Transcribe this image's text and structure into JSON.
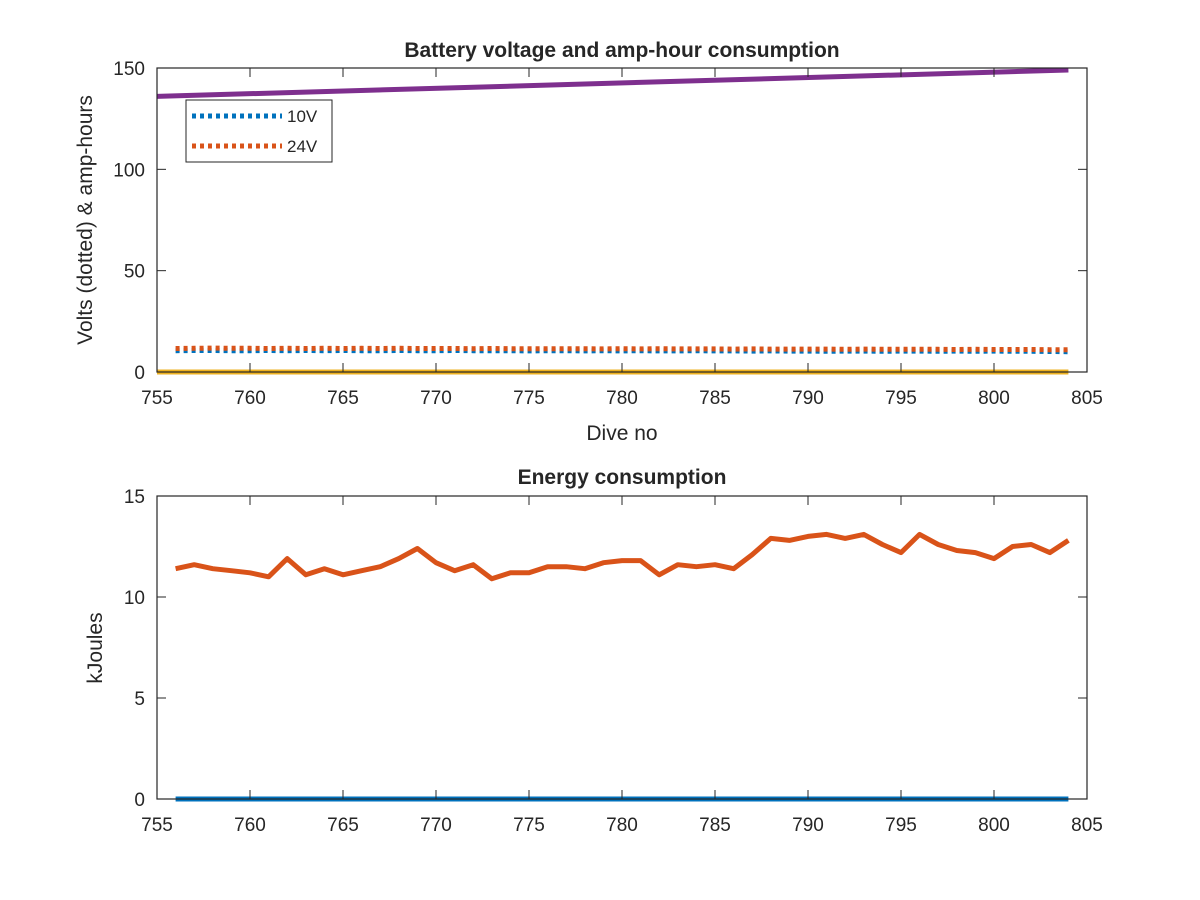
{
  "chart_data": [
    {
      "type": "line",
      "title": "Battery voltage and amp-hour consumption",
      "xlabel": "Dive no",
      "ylabel": "Volts (dotted) & amp-hours",
      "xlim": [
        755,
        805
      ],
      "ylim": [
        0,
        150
      ],
      "xticks": [
        755,
        760,
        765,
        770,
        775,
        780,
        785,
        790,
        795,
        800,
        805
      ],
      "yticks": [
        0,
        50,
        100,
        150
      ],
      "legend_position": "top-left",
      "series": [
        {
          "name": "10V",
          "style": "dotted",
          "color": "#0072BD",
          "x": [
            756,
            757,
            758,
            759,
            760,
            761,
            762,
            763,
            764,
            765,
            766,
            767,
            768,
            769,
            770,
            771,
            772,
            773,
            774,
            775,
            776,
            777,
            778,
            779,
            780,
            781,
            782,
            783,
            784,
            785,
            786,
            787,
            788,
            789,
            790,
            791,
            792,
            793,
            794,
            795,
            796,
            797,
            798,
            799,
            800,
            801,
            802,
            803,
            804
          ],
          "values": [
            10.5,
            10.6,
            10.6,
            10.5,
            10.5,
            10.6,
            10.5,
            10.6,
            10.5,
            10.6,
            10.5,
            10.5,
            10.6,
            10.5,
            10.5,
            10.6,
            10.5,
            10.5,
            10.5,
            10.4,
            10.5,
            10.5,
            10.4,
            10.5,
            10.4,
            10.5,
            10.4,
            10.4,
            10.5,
            10.4,
            10.4,
            10.3,
            10.4,
            10.3,
            10.3,
            10.2,
            10.3,
            10.3,
            10.2,
            10.3,
            10.3,
            10.2,
            10.3,
            10.2,
            10.3,
            10.2,
            10.2,
            10.1,
            10.0
          ]
        },
        {
          "name": "24V",
          "style": "dotted",
          "color": "#D95319",
          "x": [
            756,
            757,
            758,
            759,
            760,
            761,
            762,
            763,
            764,
            765,
            766,
            767,
            768,
            769,
            770,
            771,
            772,
            773,
            774,
            775,
            776,
            777,
            778,
            779,
            780,
            781,
            782,
            783,
            784,
            785,
            786,
            787,
            788,
            789,
            790,
            791,
            792,
            793,
            794,
            795,
            796,
            797,
            798,
            799,
            800,
            801,
            802,
            803,
            804
          ],
          "values": [
            11.6,
            11.7,
            11.8,
            11.7,
            11.7,
            11.6,
            11.7,
            11.6,
            11.7,
            11.6,
            11.7,
            11.6,
            11.7,
            11.6,
            11.6,
            11.6,
            11.5,
            11.6,
            11.5,
            11.5,
            11.5,
            11.5,
            11.5,
            11.4,
            11.5,
            11.4,
            11.5,
            11.4,
            11.4,
            11.4,
            11.3,
            11.4,
            11.3,
            11.3,
            11.3,
            11.3,
            11.2,
            11.3,
            11.2,
            11.2,
            11.2,
            11.2,
            11.1,
            11.2,
            11.1,
            11.1,
            11.1,
            11.0,
            11.0
          ]
        },
        {
          "style": "solid",
          "color": "#7E2F8E",
          "x": [
            755,
            804
          ],
          "values": [
            136,
            149
          ]
        },
        {
          "style": "solid",
          "color": "#EDB120",
          "x": [
            755,
            804
          ],
          "values": [
            0,
            0
          ]
        }
      ]
    },
    {
      "type": "line",
      "title": "Energy consumption",
      "xlabel": "",
      "ylabel": "kJoules",
      "xlim": [
        755,
        805
      ],
      "ylim": [
        0,
        15
      ],
      "xticks": [
        755,
        760,
        765,
        770,
        775,
        780,
        785,
        790,
        795,
        800,
        805
      ],
      "yticks": [
        0,
        5,
        10,
        15
      ],
      "series": [
        {
          "style": "solid",
          "color": "#0072BD",
          "x": [
            756,
            804
          ],
          "values": [
            0,
            0
          ]
        },
        {
          "style": "solid",
          "color": "#D95319",
          "x": [
            756,
            757,
            758,
            759,
            760,
            761,
            762,
            763,
            764,
            765,
            766,
            767,
            768,
            769,
            770,
            771,
            772,
            773,
            774,
            775,
            776,
            777,
            778,
            779,
            780,
            781,
            782,
            783,
            784,
            785,
            786,
            787,
            788,
            789,
            790,
            791,
            792,
            793,
            794,
            795,
            796,
            797,
            798,
            799,
            800,
            801,
            802,
            803,
            804
          ],
          "values": [
            11.4,
            11.6,
            11.4,
            11.3,
            11.2,
            11.0,
            11.9,
            11.1,
            11.4,
            11.1,
            11.3,
            11.5,
            11.9,
            12.4,
            11.7,
            11.3,
            11.6,
            10.9,
            11.2,
            11.2,
            11.5,
            11.5,
            11.4,
            11.7,
            11.8,
            11.8,
            11.1,
            11.6,
            11.5,
            11.6,
            11.4,
            12.1,
            12.9,
            12.8,
            13.0,
            13.1,
            12.9,
            13.1,
            12.6,
            12.2,
            13.1,
            12.6,
            12.3,
            12.2,
            11.9,
            12.5,
            12.6,
            12.2,
            12.8
          ]
        }
      ]
    }
  ]
}
